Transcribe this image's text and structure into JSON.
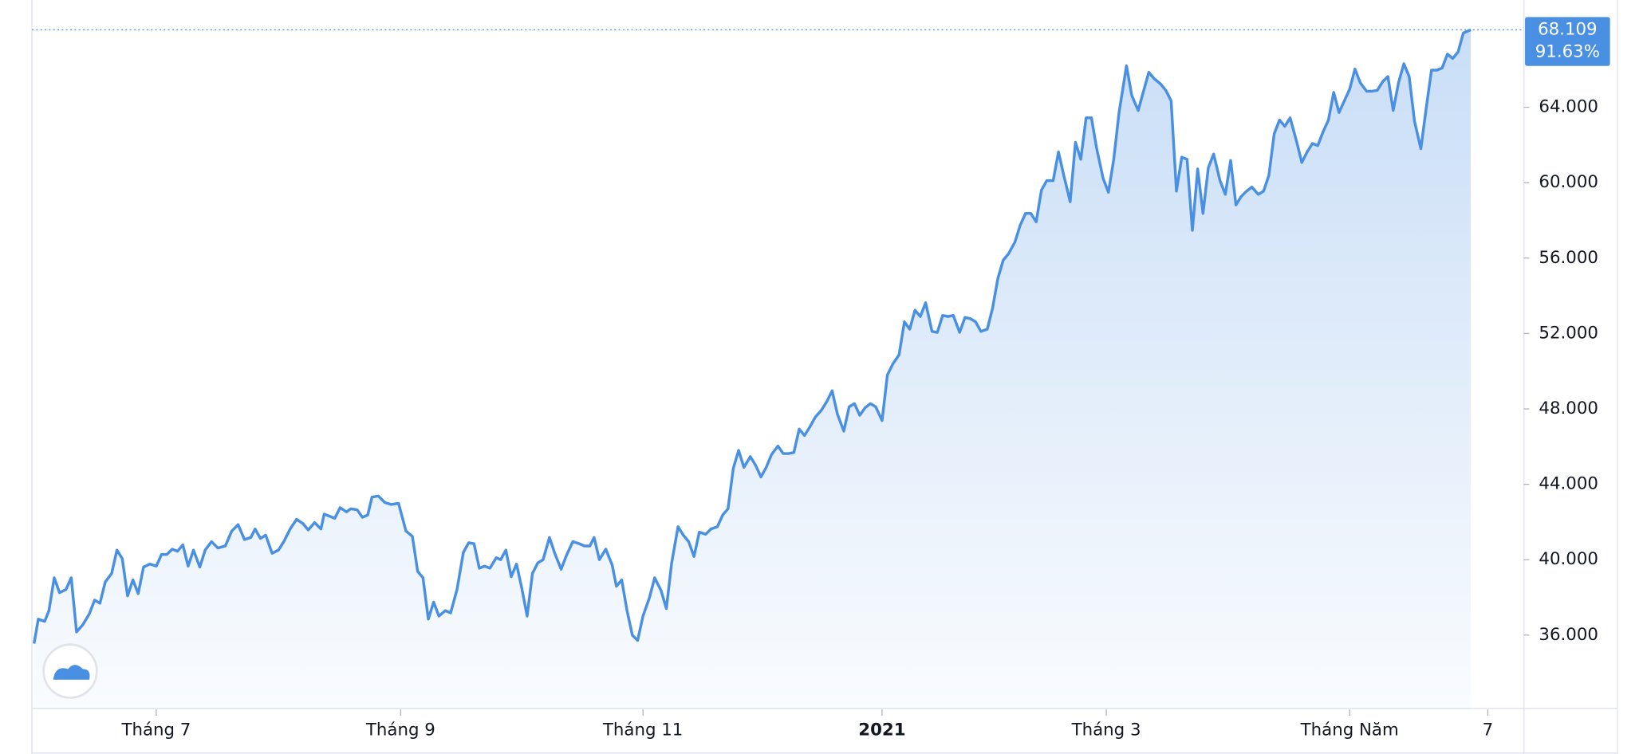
{
  "chart_data": {
    "type": "area-line",
    "color": "#4a90e2",
    "x": [
      0,
      4,
      10,
      14,
      19,
      24,
      30,
      35,
      40,
      46,
      52,
      57,
      62,
      67,
      73,
      78,
      83,
      88,
      93,
      98,
      103,
      109,
      115,
      120,
      125,
      130,
      135,
      140,
      145,
      150,
      156,
      161,
      167,
      173,
      180,
      186,
      192,
      198,
      204,
      208,
      213,
      218,
      224,
      230,
      235,
      241,
      247,
      253,
      258,
      264,
      270,
      273,
      278,
      283,
      288,
      294,
      298,
      304,
      309,
      314,
      318,
      324,
      330,
      336,
      343,
      350,
      356,
      361,
      366,
      371,
      376,
      381,
      387,
      392,
      398,
      404,
      409,
      414,
      419,
      424,
      429,
      435,
      439,
      444,
      449,
      454,
      459,
      464,
      469,
      474,
      479,
      485,
      490,
      496,
      501,
      507,
      513,
      518,
      523,
      527,
      532,
      538,
      544,
      548,
      553,
      558,
      563,
      568,
      573,
      579,
      584,
      590,
      595,
      600,
      606,
      611,
      616,
      621,
      626,
      632,
      637,
      643,
      648,
      653,
      658,
      663,
      668,
      674,
      679,
      684,
      689,
      694,
      700,
      705,
      710,
      715,
      720,
      725,
      730,
      735,
      741,
      746,
      751,
      756,
      762,
      767,
      772,
      777,
      782,
      787,
      792,
      798,
      803,
      808,
      814,
      819,
      824,
      829,
      834,
      839,
      845,
      850,
      855,
      860,
      865,
      871,
      876,
      881,
      886,
      891,
      897,
      902,
      907,
      912,
      917,
      923,
      928,
      933,
      938,
      943,
      948,
      953,
      959,
      964,
      969,
      975,
      980,
      985,
      990,
      995,
      1000,
      1006,
      1011,
      1016,
      1021,
      1028,
      1033,
      1039,
      1044,
      1049,
      1054,
      1060,
      1065,
      1070,
      1075,
      1080,
      1085,
      1090,
      1095,
      1100,
      1105,
      1110,
      1116,
      1121,
      1126,
      1131,
      1136,
      1141,
      1146,
      1152,
      1157,
      1162,
      1167,
      1172,
      1177,
      1182,
      1188,
      1193,
      1198,
      1203,
      1208,
      1213,
      1218,
      1223,
      1228,
      1233,
      1238,
      1243,
      1248,
      1254,
      1259,
      1264,
      1269,
      1274,
      1279,
      1284,
      1289,
      1294,
      1299,
      1305,
      1310,
      1315,
      1320,
      1325,
      1330,
      1335,
      1340,
      1345,
      1352
    ],
    "values": [
      35550,
      36850,
      36730,
      37300,
      39040,
      38250,
      38420,
      39040,
      36170,
      36560,
      37130,
      37860,
      37690,
      38820,
      39270,
      40510,
      40060,
      38080,
      38930,
      38200,
      39610,
      39770,
      39660,
      40280,
      40280,
      40560,
      40450,
      40790,
      39660,
      40510,
      39610,
      40510,
      40960,
      40620,
      40730,
      41520,
      41860,
      41070,
      41180,
      41630,
      41130,
      41300,
      40340,
      40510,
      40960,
      41630,
      42140,
      41920,
      41580,
      41970,
      41630,
      42420,
      42310,
      42200,
      42760,
      42540,
      42700,
      42650,
      42250,
      42370,
      43320,
      43380,
      43040,
      42930,
      42990,
      41520,
      41240,
      39380,
      39040,
      36850,
      37750,
      37010,
      37300,
      37180,
      38420,
      40390,
      40900,
      40850,
      39550,
      39660,
      39550,
      40110,
      40000,
      40510,
      39100,
      39770,
      38480,
      37010,
      39270,
      39830,
      40000,
      41180,
      40340,
      39490,
      40230,
      40960,
      40850,
      40730,
      40730,
      41180,
      40000,
      40560,
      39720,
      38590,
      38930,
      37300,
      36000,
      35720,
      37010,
      37970,
      39040,
      38370,
      37410,
      39830,
      41750,
      41300,
      40960,
      40170,
      41460,
      41350,
      41630,
      41750,
      42370,
      42700,
      44850,
      45800,
      44900,
      45470,
      45010,
      44390,
      44900,
      45580,
      46030,
      45630,
      45630,
      45690,
      46930,
      46590,
      47040,
      47550,
      47940,
      48390,
      48960,
      47720,
      46820,
      48110,
      48280,
      47660,
      48060,
      48280,
      48110,
      47380,
      49800,
      50370,
      50870,
      52620,
      52230,
      53240,
      52900,
      53630,
      52110,
      52060,
      52960,
      52900,
      52960,
      52060,
      52850,
      52790,
      52620,
      52110,
      52230,
      53350,
      54930,
      55890,
      56230,
      56850,
      57750,
      58370,
      58370,
      57920,
      59610,
      60110,
      60110,
      61630,
      60390,
      58990,
      62140,
      61240,
      63440,
      63440,
      61800,
      60230,
      59490,
      61240,
      63720,
      66200,
      64620,
      63830,
      64850,
      65860,
      65520,
      65240,
      64900,
      64340,
      59550,
      61350,
      61240,
      57470,
      60730,
      58370,
      60790,
      61520,
      60110,
      59380,
      61180,
      58820,
      59270,
      59550,
      59770,
      59380,
      59550,
      60390,
      62590,
      63320,
      62990,
      63440,
      62200,
      61070,
      61630,
      62080,
      61970,
      62700,
      63320,
      64790,
      63720,
      64340,
      64960,
      66030,
      65300,
      64850,
      64850,
      64900,
      65350,
      65630,
      63830,
      65300,
      66310,
      65630,
      63270,
      61800,
      63940,
      65970,
      65970,
      66080,
      66820,
      66590,
      66930,
      67940,
      68109
    ],
    "xlim": [
      -2,
      1402
    ],
    "xticks": [
      {
        "value": 115,
        "label": "Tháng 7"
      },
      {
        "value": 345,
        "label": "Tháng 9"
      },
      {
        "value": 573,
        "label": "Tháng 11"
      },
      {
        "value": 798,
        "label": "2021"
      },
      {
        "value": 1009,
        "label": "Tháng 3"
      },
      {
        "value": 1238,
        "label": "Tháng Năm"
      },
      {
        "value": 1368,
        "label": "7"
      }
    ],
    "ylim": [
      32060,
      69690
    ],
    "yticks": [
      {
        "value": 36000,
        "label": "36.000"
      },
      {
        "value": 40000,
        "label": "40.000"
      },
      {
        "value": 44000,
        "label": "44.000"
      },
      {
        "value": 48000,
        "label": "48.000"
      },
      {
        "value": 52000,
        "label": "52.000"
      },
      {
        "value": 56000,
        "label": "56.000"
      },
      {
        "value": 60000,
        "label": "60.000"
      },
      {
        "value": 64000,
        "label": "64.000"
      }
    ],
    "price_label": "68.109",
    "change_label": "91.63%"
  }
}
